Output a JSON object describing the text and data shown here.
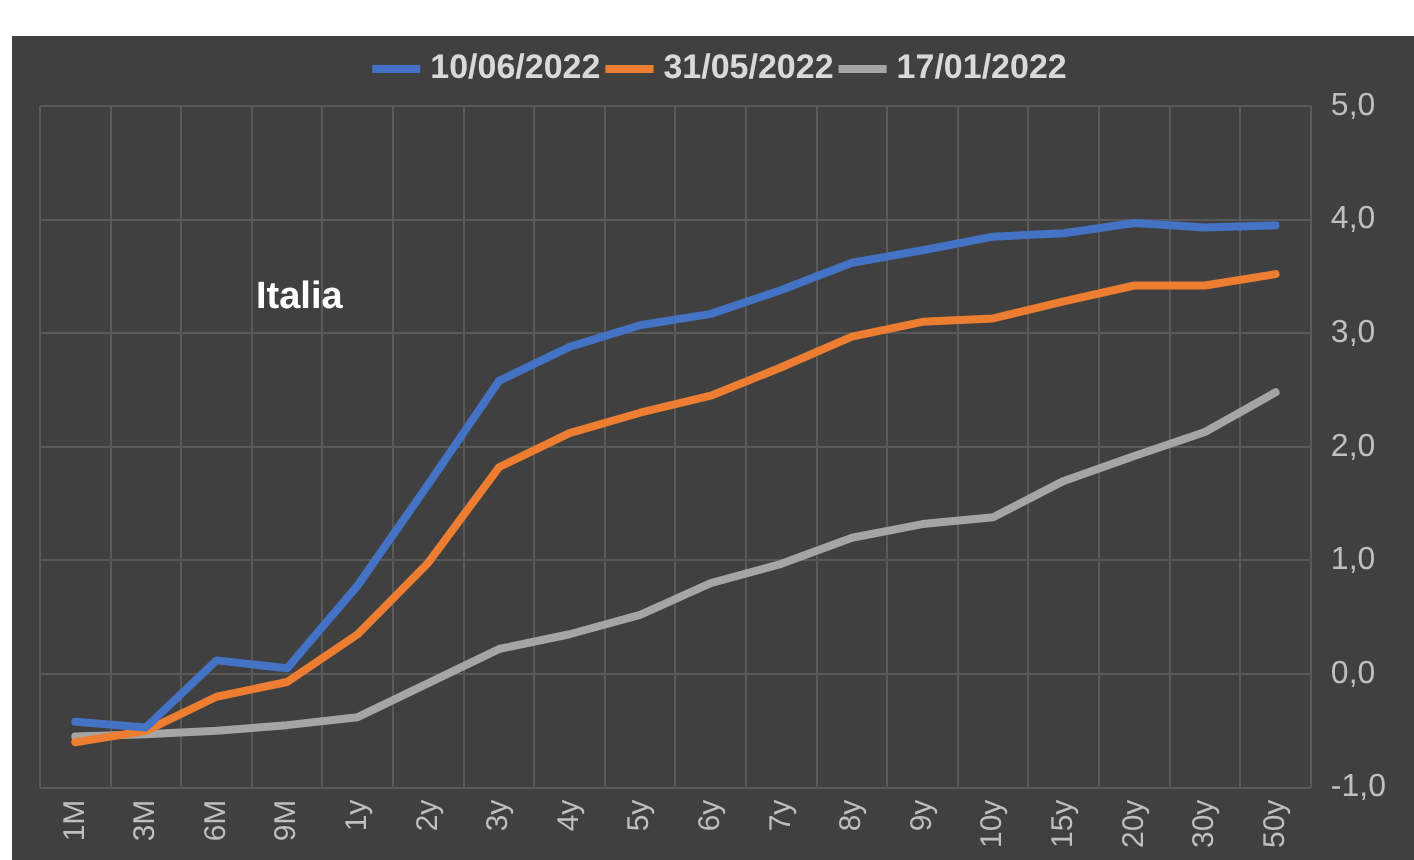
{
  "chart_data": {
    "type": "line",
    "annotations": [
      "Italia"
    ],
    "categories": [
      "1M",
      "3M",
      "6M",
      "9M",
      "1y",
      "2y",
      "3y",
      "4y",
      "5y",
      "6y",
      "7y",
      "8y",
      "9y",
      "10y",
      "15y",
      "20y",
      "30y",
      "50y"
    ],
    "series": [
      {
        "name": "10/06/2022",
        "color": "#4472c4",
        "values": [
          -0.42,
          -0.47,
          0.12,
          0.05,
          0.78,
          1.67,
          2.58,
          2.88,
          3.07,
          3.17,
          3.38,
          3.62,
          3.73,
          3.85,
          3.88,
          3.97,
          3.93,
          3.95
        ]
      },
      {
        "name": "31/05/2022",
        "color": "#ed7d31",
        "values": [
          -0.6,
          -0.5,
          -0.2,
          -0.07,
          0.35,
          0.98,
          1.82,
          2.12,
          2.3,
          2.45,
          2.7,
          2.97,
          3.1,
          3.13,
          3.28,
          3.42,
          3.42,
          3.52
        ]
      },
      {
        "name": "17/01/2022",
        "color": "#a5a5a5",
        "values": [
          -0.55,
          -0.53,
          -0.5,
          -0.45,
          -0.38,
          -0.08,
          0.22,
          0.35,
          0.52,
          0.8,
          0.97,
          1.2,
          1.32,
          1.38,
          1.7,
          1.92,
          2.13,
          2.48
        ]
      }
    ],
    "ylim": [
      -1,
      5
    ],
    "yticks": [
      {
        "value": -1,
        "label": "-1,0"
      },
      {
        "value": 0,
        "label": "0,0"
      },
      {
        "value": 1,
        "label": "1,0"
      },
      {
        "value": 2,
        "label": "2,0"
      },
      {
        "value": 3,
        "label": "3,0"
      },
      {
        "value": 4,
        "label": "4,0"
      },
      {
        "value": 5,
        "label": "5,0"
      }
    ],
    "grid": true,
    "legend": "top",
    "marker": "none",
    "line_style": "solid"
  }
}
